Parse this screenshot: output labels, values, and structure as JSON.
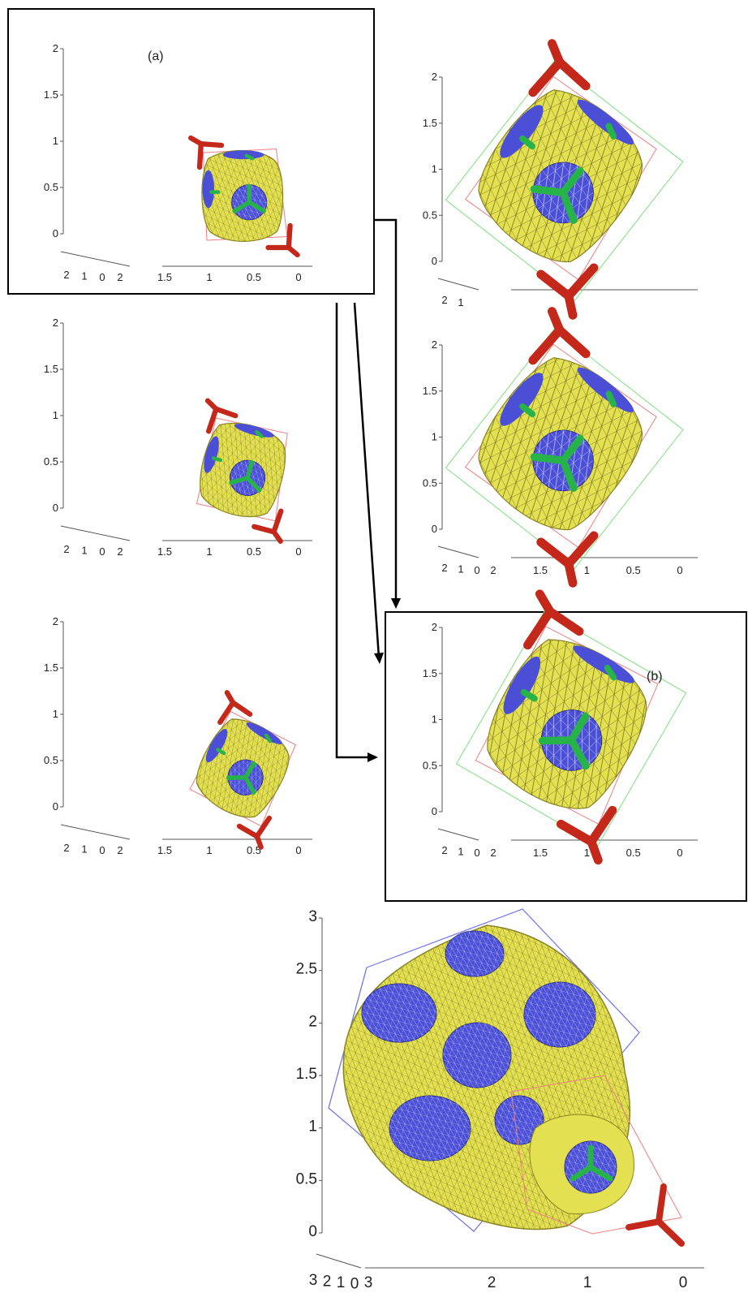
{
  "colors": {
    "surface": "#e3e052",
    "surface_edge": "#8a8524",
    "pore": "#4a4fd6",
    "rod_green": "#27b34a",
    "rod_red": "#c4281a",
    "cell_red": "#ef7f7f",
    "cell_green": "#7de07d",
    "cell_blue": "#6f74ee",
    "axis": "#555555",
    "frame": "#000000"
  },
  "labels": {
    "a": "(a)",
    "b": "(b)"
  },
  "panels": {
    "a1": {
      "y_ticks": [
        "2",
        "1.5",
        "1",
        "0.5",
        "0"
      ],
      "x_ticks": [
        "1.5",
        "1",
        "0.5",
        "0"
      ],
      "depth_ticks": [
        "2",
        "1",
        "0",
        "2"
      ]
    },
    "a2": {
      "y_ticks": [
        "2",
        "1.5",
        "1",
        "0.5",
        "0"
      ],
      "x_ticks": [
        "1.5",
        "1",
        "0.5",
        "0"
      ],
      "depth_ticks": [
        "2",
        "1",
        "0",
        "2"
      ]
    },
    "a3": {
      "y_ticks": [
        "2",
        "1.5",
        "1",
        "0.5",
        "0"
      ],
      "x_ticks": [
        "1.5",
        "1",
        "0.5",
        "0"
      ],
      "depth_ticks": [
        "2",
        "1",
        "0",
        "2"
      ]
    },
    "r1": {
      "y_ticks": [
        "2",
        "1.5",
        "1",
        "0.5",
        "0"
      ],
      "x_ticks": [],
      "depth_ticks": [
        "2",
        "1"
      ]
    },
    "r2": {
      "y_ticks": [
        "2",
        "1.5",
        "1",
        "0.5",
        "0"
      ],
      "x_ticks": [
        "1.5",
        "1",
        "0.5",
        "0"
      ],
      "depth_ticks": [
        "2",
        "1",
        "0",
        "2"
      ]
    },
    "b": {
      "y_ticks": [
        "2",
        "1.5",
        "1",
        "0.5",
        "0"
      ],
      "x_ticks": [
        "1.5",
        "1",
        "0.5",
        "0"
      ],
      "depth_ticks": [
        "2",
        "1",
        "0",
        "2"
      ]
    },
    "big": {
      "y_ticks": [
        "3",
        "2.5",
        "2",
        "1.5",
        "1",
        "0.5",
        "0"
      ],
      "x_ticks": [
        "2",
        "1",
        "0"
      ],
      "depth_ticks": [
        "3",
        "2",
        "1",
        "0",
        "3"
      ]
    }
  }
}
